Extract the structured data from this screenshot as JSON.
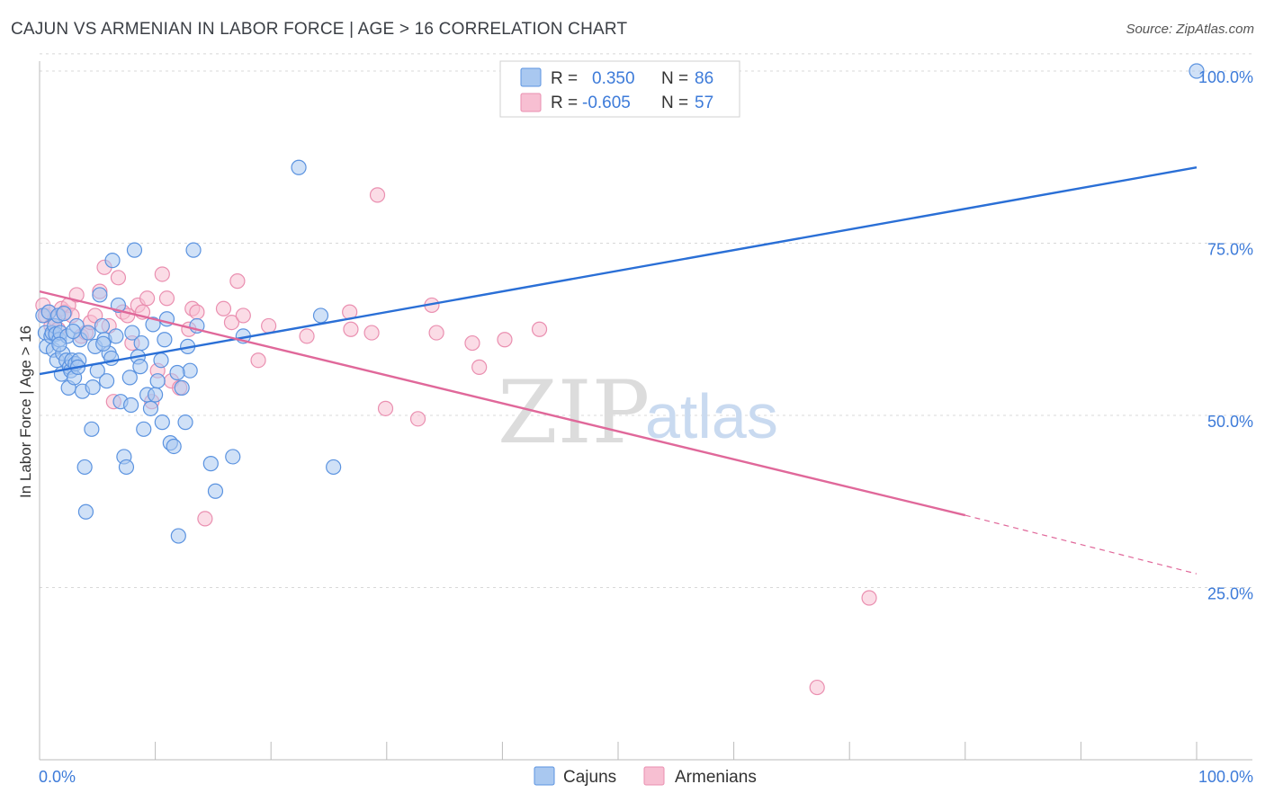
{
  "title": "CAJUN VS ARMENIAN IN LABOR FORCE | AGE > 16 CORRELATION CHART",
  "source": "Source: ZipAtlas.com",
  "watermark": {
    "zip": "ZIP",
    "atlas": "atlas"
  },
  "colors": {
    "cajun_fill": "#a9c8f0",
    "cajun_stroke": "#5b93e0",
    "cajun_line": "#2a6fd6",
    "armenian_fill": "#f7bfd2",
    "armenian_stroke": "#ea8fb0",
    "armenian_line": "#e0689a",
    "grid": "#d8d8d8",
    "label": "#3d7bd9"
  },
  "legend_top": [
    {
      "r_label": "R =",
      "r_value": "0.350",
      "n_label": "N =",
      "n_value": "86"
    },
    {
      "r_label": "R =",
      "r_value": "-0.605",
      "n_label": "N =",
      "n_value": "57"
    }
  ],
  "chart_data": {
    "type": "scatter",
    "title": "CAJUN VS ARMENIAN IN LABOR FORCE | AGE > 16 CORRELATION CHART",
    "xlabel": "",
    "ylabel": "In Labor Force | Age > 16",
    "xlim": [
      0,
      100
    ],
    "ylim": [
      0,
      102
    ],
    "x_tick_labels": [
      "0.0%",
      "100.0%"
    ],
    "y_ticks": [
      25,
      50,
      75,
      100
    ],
    "y_tick_labels": [
      "25.0%",
      "50.0%",
      "75.0%",
      "100.0%"
    ],
    "legend": [
      "Cajuns",
      "Armenians"
    ],
    "series": [
      {
        "name": "Cajuns",
        "r": 0.35,
        "n": 86,
        "trend": {
          "x": [
            0,
            100
          ],
          "y": [
            56,
            86
          ]
        },
        "points": [
          [
            0.3,
            64.5
          ],
          [
            0.5,
            62
          ],
          [
            0.6,
            60
          ],
          [
            0.8,
            65
          ],
          [
            1.0,
            61.5
          ],
          [
            1.1,
            62
          ],
          [
            1.2,
            59.5
          ],
          [
            1.3,
            63
          ],
          [
            1.4,
            61.8
          ],
          [
            1.5,
            58
          ],
          [
            1.6,
            64.5
          ],
          [
            1.7,
            61
          ],
          [
            1.8,
            62
          ],
          [
            1.9,
            56
          ],
          [
            2.0,
            59
          ],
          [
            2.1,
            64.8
          ],
          [
            2.3,
            58
          ],
          [
            2.4,
            61.5
          ],
          [
            2.5,
            54
          ],
          [
            2.6,
            57
          ],
          [
            2.7,
            56.5
          ],
          [
            2.8,
            58
          ],
          [
            3.0,
            55.5
          ],
          [
            3.1,
            57.5
          ],
          [
            3.2,
            63
          ],
          [
            3.4,
            58
          ],
          [
            3.5,
            61
          ],
          [
            3.7,
            53.5
          ],
          [
            3.9,
            42.5
          ],
          [
            4.0,
            36
          ],
          [
            4.2,
            62
          ],
          [
            4.5,
            48
          ],
          [
            4.8,
            60
          ],
          [
            5.0,
            56.5
          ],
          [
            5.2,
            67.5
          ],
          [
            5.4,
            63
          ],
          [
            5.6,
            61
          ],
          [
            5.8,
            55
          ],
          [
            6.0,
            59
          ],
          [
            6.3,
            72.5
          ],
          [
            6.6,
            61.5
          ],
          [
            6.8,
            66
          ],
          [
            7.0,
            52
          ],
          [
            7.3,
            44
          ],
          [
            7.5,
            42.5
          ],
          [
            7.8,
            55.5
          ],
          [
            8.0,
            62
          ],
          [
            8.2,
            74
          ],
          [
            8.5,
            58.5
          ],
          [
            8.8,
            60.5
          ],
          [
            9.0,
            48
          ],
          [
            9.3,
            53
          ],
          [
            9.6,
            51
          ],
          [
            10.0,
            53
          ],
          [
            10.2,
            55
          ],
          [
            10.5,
            58
          ],
          [
            10.8,
            61
          ],
          [
            11.0,
            64
          ],
          [
            11.3,
            46
          ],
          [
            11.6,
            45.5
          ],
          [
            12.0,
            32.5
          ],
          [
            12.3,
            54
          ],
          [
            12.6,
            49
          ],
          [
            12.8,
            60
          ],
          [
            13.0,
            56.5
          ],
          [
            13.3,
            74
          ],
          [
            13.6,
            63
          ],
          [
            14.8,
            43
          ],
          [
            15.2,
            39
          ],
          [
            16.7,
            44
          ],
          [
            17.6,
            61.5
          ],
          [
            22.4,
            86
          ],
          [
            24.3,
            64.5
          ],
          [
            25.4,
            42.5
          ],
          [
            100,
            100
          ],
          [
            6.2,
            58.3
          ],
          [
            9.8,
            63.2
          ],
          [
            2.9,
            62.2
          ],
          [
            4.6,
            54.1
          ],
          [
            7.9,
            51.5
          ],
          [
            11.9,
            56.2
          ],
          [
            3.3,
            57.0
          ],
          [
            1.7,
            60.3
          ],
          [
            5.5,
            60.4
          ],
          [
            8.7,
            57.1
          ],
          [
            10.6,
            49.0
          ]
        ]
      },
      {
        "name": "Armenians",
        "r": -0.605,
        "n": 57,
        "trend": {
          "x": [
            0,
            80
          ],
          "y": [
            68,
            35.5
          ],
          "dashed_to": [
            100,
            27
          ]
        },
        "points": [
          [
            0.3,
            66
          ],
          [
            0.5,
            64.5
          ],
          [
            0.8,
            65
          ],
          [
            1.0,
            63
          ],
          [
            1.3,
            64
          ],
          [
            1.6,
            62.5
          ],
          [
            1.9,
            65.5
          ],
          [
            2.2,
            65
          ],
          [
            2.5,
            66
          ],
          [
            2.8,
            64.5
          ],
          [
            3.2,
            67.5
          ],
          [
            3.6,
            61.5
          ],
          [
            4.0,
            62
          ],
          [
            4.4,
            63.5
          ],
          [
            4.8,
            64.5
          ],
          [
            5.2,
            68
          ],
          [
            5.6,
            71.5
          ],
          [
            6.0,
            63
          ],
          [
            6.4,
            52
          ],
          [
            6.8,
            70
          ],
          [
            7.2,
            65
          ],
          [
            7.6,
            64.5
          ],
          [
            8.0,
            60.5
          ],
          [
            8.5,
            66
          ],
          [
            8.9,
            65
          ],
          [
            9.3,
            67
          ],
          [
            9.7,
            52
          ],
          [
            10.2,
            56.5
          ],
          [
            10.6,
            70.5
          ],
          [
            11.0,
            67
          ],
          [
            11.4,
            55
          ],
          [
            12.1,
            54
          ],
          [
            12.9,
            62.5
          ],
          [
            13.2,
            65.5
          ],
          [
            13.6,
            65
          ],
          [
            14.3,
            35
          ],
          [
            15.9,
            65.5
          ],
          [
            16.6,
            63.5
          ],
          [
            17.1,
            69.5
          ],
          [
            17.6,
            64.5
          ],
          [
            18.9,
            58
          ],
          [
            19.8,
            63
          ],
          [
            23.1,
            61.5
          ],
          [
            26.8,
            65
          ],
          [
            26.9,
            62.5
          ],
          [
            28.7,
            62
          ],
          [
            29.2,
            82
          ],
          [
            29.9,
            51
          ],
          [
            32.7,
            49.5
          ],
          [
            33.9,
            66
          ],
          [
            34.3,
            62
          ],
          [
            37.4,
            60.5
          ],
          [
            38.0,
            57
          ],
          [
            40.2,
            61
          ],
          [
            43.2,
            62.5
          ],
          [
            67.2,
            10.5
          ],
          [
            71.7,
            23.5
          ]
        ]
      }
    ]
  },
  "bottom_legend": [
    {
      "label": "Cajuns"
    },
    {
      "label": "Armenians"
    }
  ]
}
